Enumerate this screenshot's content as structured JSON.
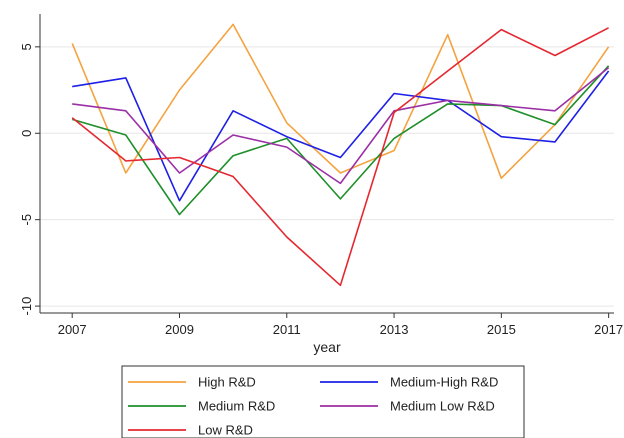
{
  "chart_data": {
    "type": "line",
    "title": "",
    "xlabel": "year",
    "ylabel": "",
    "x": [
      2007,
      2008,
      2009,
      2010,
      2011,
      2012,
      2013,
      2014,
      2015,
      2016,
      2017
    ],
    "xlim": [
      2006.4,
      2017.1
    ],
    "ylim": [
      -10.4,
      6.9
    ],
    "x_ticks": [
      2007,
      2009,
      2011,
      2013,
      2015,
      2017
    ],
    "y_ticks": [
      -10,
      -5,
      0,
      5
    ],
    "x_tick_labels": [
      "2007",
      "2009",
      "2011",
      "2013",
      "2015",
      "2017"
    ],
    "y_tick_labels": [
      "-10",
      "-5",
      "0",
      "5"
    ],
    "grid": "horizontal",
    "legend_position": "bottom",
    "series": [
      {
        "name": "High R&D",
        "color": "#F4A340",
        "values": [
          5.2,
          -2.3,
          2.5,
          6.3,
          0.6,
          -2.3,
          -1.0,
          5.7,
          -2.6,
          0.5,
          5.0
        ]
      },
      {
        "name": "Medium-High R&D",
        "color": "#1E20E6",
        "values": [
          2.7,
          3.2,
          -3.9,
          1.3,
          -0.2,
          -1.4,
          2.3,
          1.9,
          -0.2,
          -0.5,
          3.6
        ]
      },
      {
        "name": "Medium R&D",
        "color": "#1F8F2A",
        "values": [
          0.8,
          -0.1,
          -4.7,
          -1.3,
          -0.3,
          -3.8,
          -0.3,
          1.7,
          1.6,
          0.5,
          3.9
        ]
      },
      {
        "name": "Medium Low R&D",
        "color": "#9B2FA5",
        "values": [
          1.7,
          1.3,
          -2.3,
          -0.1,
          -0.8,
          -2.9,
          1.3,
          1.9,
          1.6,
          1.3,
          3.8
        ]
      },
      {
        "name": "Low R&D",
        "color": "#E42830",
        "values": [
          0.9,
          -1.6,
          -1.4,
          -2.5,
          -6.0,
          -8.8,
          1.2,
          3.6,
          6.0,
          4.5,
          6.1
        ]
      }
    ],
    "legend_order": [
      "High R&D",
      "Medium-High R&D",
      "Medium R&D",
      "Medium Low R&D",
      "Low R&D"
    ]
  }
}
